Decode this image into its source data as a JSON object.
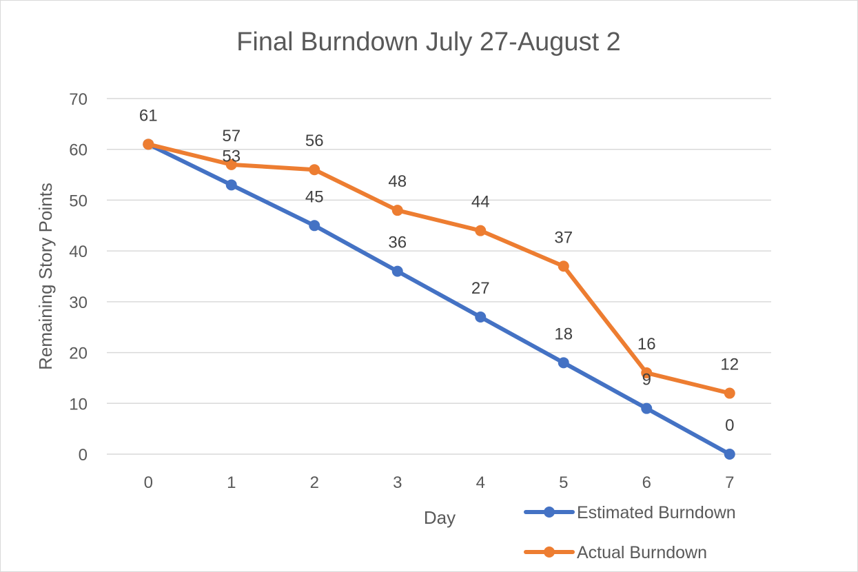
{
  "chart_data": {
    "type": "line",
    "title": "Final Burndown July 27-August 2",
    "xlabel": "Day",
    "ylabel": "Remaining Story Points",
    "ylim": [
      0,
      70
    ],
    "yticks": [
      0,
      10,
      20,
      30,
      40,
      50,
      60,
      70
    ],
    "categories": [
      "0",
      "1",
      "2",
      "3",
      "4",
      "5",
      "6",
      "7"
    ],
    "grid": true,
    "legend_position": "bottom-right",
    "series": [
      {
        "name": "Estimated Burndown",
        "color": "#4472C4",
        "values": [
          61,
          53,
          45,
          36,
          27,
          18,
          9,
          0
        ],
        "labels": [
          "",
          "53",
          "45",
          "36",
          "27",
          "18",
          "9",
          "0"
        ]
      },
      {
        "name": "Actual Burndown",
        "color": "#ED7D31",
        "values": [
          61,
          57,
          56,
          48,
          44,
          37,
          16,
          12
        ],
        "labels": [
          "61",
          "57",
          "56",
          "48",
          "44",
          "37",
          "16",
          "12"
        ]
      }
    ]
  }
}
